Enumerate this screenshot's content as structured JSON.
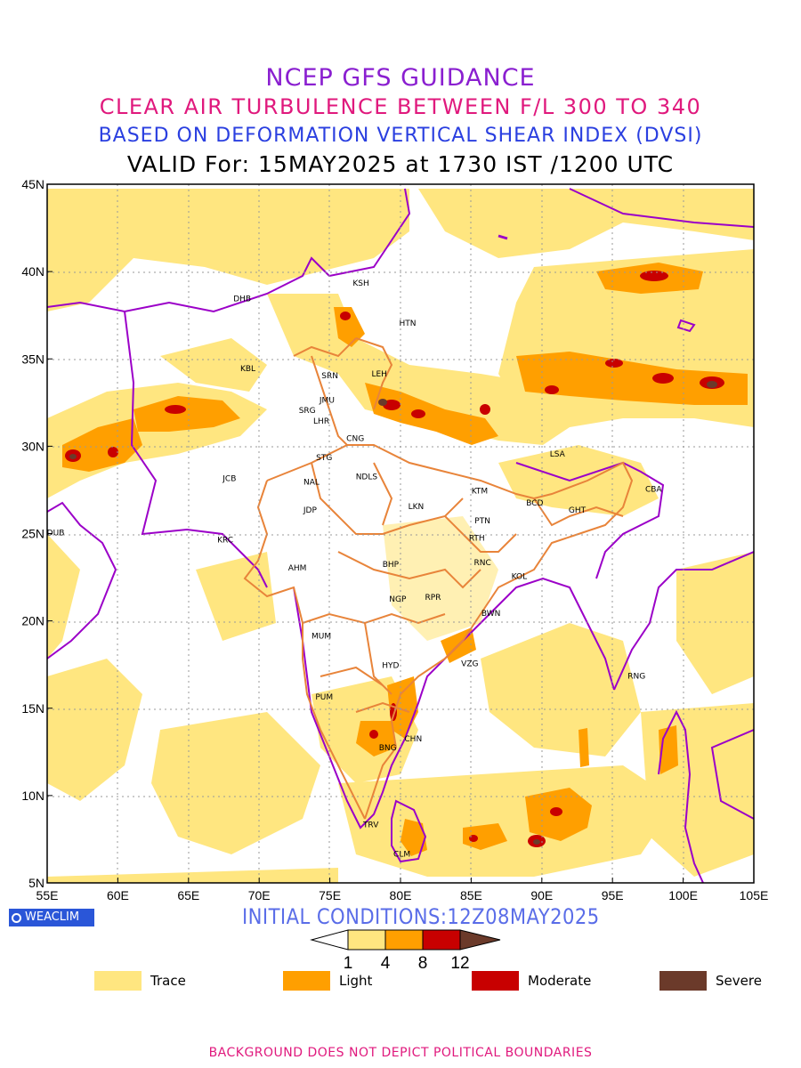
{
  "titles": {
    "line1": "NCEP GFS GUIDANCE",
    "line2": "CLEAR AIR TURBULENCE BETWEEN F/L 300 TO 340",
    "line3": "BASED ON DEFORMATION VERTICAL SHEAR INDEX (DVSI)",
    "line4": "VALID For: 15MAY2025 at 1730 IST /1200 UTC"
  },
  "map": {
    "lon_range": [
      55,
      105
    ],
    "lat_range": [
      5,
      45
    ],
    "lon_ticks": [
      "55E",
      "60E",
      "65E",
      "70E",
      "75E",
      "80E",
      "85E",
      "90E",
      "95E",
      "100E",
      "105E"
    ],
    "lat_ticks": [
      "45N",
      "40N",
      "35N",
      "30N",
      "25N",
      "20N",
      "15N",
      "10N",
      "5N"
    ],
    "grid": true,
    "stations": [
      {
        "code": "KSH",
        "lon": 77.2,
        "lat": 39.4
      },
      {
        "code": "DHB",
        "lon": 68.8,
        "lat": 38.5
      },
      {
        "code": "HTN",
        "lon": 80.5,
        "lat": 37.1
      },
      {
        "code": "KBL",
        "lon": 69.2,
        "lat": 34.5
      },
      {
        "code": "SRN",
        "lon": 75.0,
        "lat": 34.1
      },
      {
        "code": "LEH",
        "lon": 78.5,
        "lat": 34.2
      },
      {
        "code": "JMU",
        "lon": 74.8,
        "lat": 32.7
      },
      {
        "code": "SRG",
        "lon": 73.4,
        "lat": 32.1
      },
      {
        "code": "LHR",
        "lon": 74.4,
        "lat": 31.5
      },
      {
        "code": "CNG",
        "lon": 76.8,
        "lat": 30.5
      },
      {
        "code": "LSA",
        "lon": 91.1,
        "lat": 29.6
      },
      {
        "code": "STG",
        "lon": 74.6,
        "lat": 29.4
      },
      {
        "code": "JCB",
        "lon": 67.9,
        "lat": 28.2
      },
      {
        "code": "NAL",
        "lon": 73.7,
        "lat": 28.0
      },
      {
        "code": "NDLS",
        "lon": 77.6,
        "lat": 28.3
      },
      {
        "code": "KTM",
        "lon": 85.6,
        "lat": 27.5
      },
      {
        "code": "CBA",
        "lon": 97.9,
        "lat": 27.6
      },
      {
        "code": "BCD",
        "lon": 89.5,
        "lat": 26.8
      },
      {
        "code": "GHT",
        "lon": 92.5,
        "lat": 26.4
      },
      {
        "code": "LKN",
        "lon": 81.1,
        "lat": 26.6
      },
      {
        "code": "JDP",
        "lon": 73.6,
        "lat": 26.4
      },
      {
        "code": "PTN",
        "lon": 85.8,
        "lat": 25.8
      },
      {
        "code": "DUB",
        "lon": 55.6,
        "lat": 25.1
      },
      {
        "code": "KRC",
        "lon": 67.6,
        "lat": 24.7
      },
      {
        "code": "RTH",
        "lon": 85.4,
        "lat": 24.8
      },
      {
        "code": "BHP",
        "lon": 79.3,
        "lat": 23.3
      },
      {
        "code": "RNC",
        "lon": 85.8,
        "lat": 23.4
      },
      {
        "code": "AHM",
        "lon": 72.7,
        "lat": 23.1
      },
      {
        "code": "KOL",
        "lon": 88.4,
        "lat": 22.6
      },
      {
        "code": "NGP",
        "lon": 79.8,
        "lat": 21.3
      },
      {
        "code": "RPR",
        "lon": 82.3,
        "lat": 21.4
      },
      {
        "code": "BWN",
        "lon": 86.4,
        "lat": 20.5
      },
      {
        "code": "MUM",
        "lon": 74.4,
        "lat": 19.2
      },
      {
        "code": "HYD",
        "lon": 79.3,
        "lat": 17.5
      },
      {
        "code": "VZG",
        "lon": 84.9,
        "lat": 17.6
      },
      {
        "code": "RNG",
        "lon": 96.7,
        "lat": 16.9
      },
      {
        "code": "PUM",
        "lon": 74.6,
        "lat": 15.7
      },
      {
        "code": "CHN",
        "lon": 80.9,
        "lat": 13.3
      },
      {
        "code": "BNG",
        "lon": 79.1,
        "lat": 12.8
      },
      {
        "code": "TRV",
        "lon": 77.9,
        "lat": 8.4
      },
      {
        "code": "CLM",
        "lon": 80.1,
        "lat": 6.7
      }
    ]
  },
  "colors": {
    "trace": "#ffe680",
    "light": "#ff9f00",
    "moderate": "#c80000",
    "severe": "#6b3a2a",
    "coast": "#9b00c8",
    "state": "#e8843a",
    "grid": "#999999",
    "title1": "#8a1fd0",
    "title2": "#e0197d",
    "title3": "#2a3fe0"
  },
  "init_conditions": "INITIAL CONDITIONS:12Z08MAY2025",
  "logo_text": "WEACLIM",
  "colorbar": {
    "ticks": [
      "1",
      "4",
      "8",
      "12"
    ]
  },
  "legend": [
    {
      "label": "Trace",
      "color": "#ffe680"
    },
    {
      "label": "Light",
      "color": "#ff9f00"
    },
    {
      "label": "Moderate",
      "color": "#c80000"
    },
    {
      "label": "Severe",
      "color": "#6b3a2a"
    }
  ],
  "footer": "BACKGROUND DOES NOT DEPICT POLITICAL BOUNDARIES"
}
